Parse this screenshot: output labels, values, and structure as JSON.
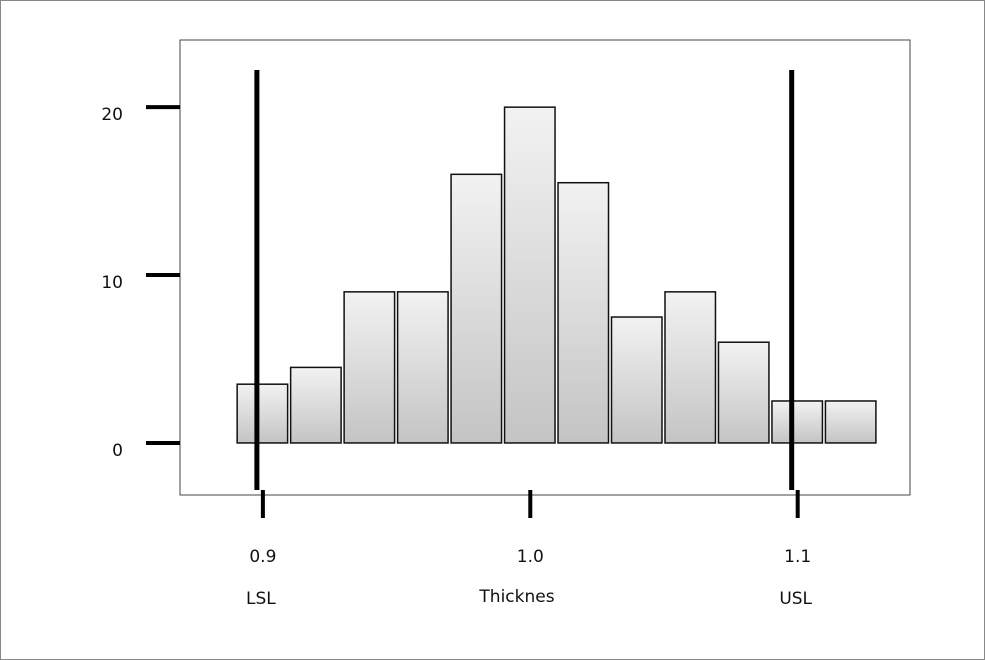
{
  "chart_data": {
    "type": "histogram",
    "x_label": "Thicknes",
    "bins": [
      0.89,
      0.91,
      0.93,
      0.95,
      0.97,
      0.99,
      1.01,
      1.03,
      1.05,
      1.07,
      1.09,
      1.11,
      1.13
    ],
    "values": [
      3.5,
      4.5,
      9,
      9,
      16,
      20,
      15.5,
      7.5,
      9,
      6,
      2.5,
      2.5
    ],
    "xlim": [
      0.869,
      1.142
    ],
    "xticks": [
      0.9,
      {
        "value": 1,
        "label": "1.0"
      },
      1.1
    ],
    "ylim": [
      -3.1,
      24
    ],
    "yticks": [
      0,
      10,
      20
    ],
    "spec_limits": [
      {
        "value": 0.9,
        "label": "LSL"
      },
      {
        "value": 1.1,
        "label": "USL"
      }
    ]
  }
}
